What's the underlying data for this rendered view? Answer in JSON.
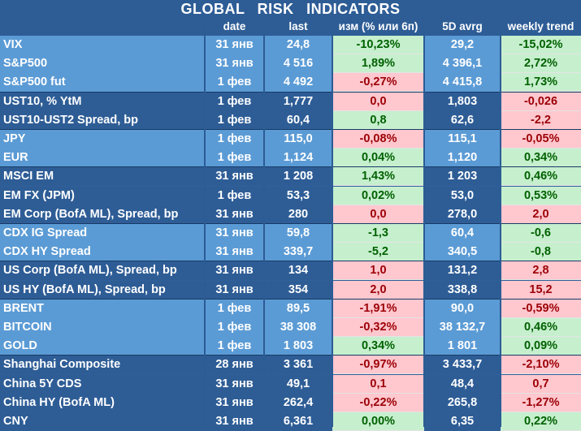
{
  "title": "GLOBAL RISK INDICATORS",
  "columns": [
    "",
    "date",
    "last",
    "изм (% или 6п)",
    "5D avrg",
    "weekly trend"
  ],
  "colors": {
    "block_light": "#5b9bd5",
    "block_dark": "#2e5d96",
    "positive_bg": "#c6efce",
    "positive_text": "#006100",
    "negative_bg": "#ffc7ce",
    "negative_text": "#9c0006"
  },
  "rows": [
    {
      "name": "VIX",
      "date": "31 янв",
      "last": "24,8",
      "chg": "-10,23%",
      "chg_sign": "pos",
      "avg": "29,2",
      "wk": "-15,02%",
      "wk_sign": "pos",
      "group": 1
    },
    {
      "name": "S&P500",
      "date": "31 янв",
      "last": "4 516",
      "chg": "1,89%",
      "chg_sign": "pos",
      "avg": "4 396,1",
      "wk": "2,72%",
      "wk_sign": "pos",
      "group": 1
    },
    {
      "name": "S&P500 fut",
      "date": "1 фев",
      "last": "4 492",
      "chg": "-0,27%",
      "chg_sign": "neg",
      "avg": "4 415,8",
      "wk": "1,73%",
      "wk_sign": "pos",
      "group": 1
    },
    {
      "name": "UST10, % YtM",
      "date": "1 фев",
      "last": "1,777",
      "chg": "0,0",
      "chg_sign": "neg",
      "avg": "1,803",
      "wk": "-0,026",
      "wk_sign": "neg",
      "group": 2
    },
    {
      "name": "UST10-UST2 Spread, bp",
      "date": "1 фев",
      "last": "60,4",
      "chg": "0,8",
      "chg_sign": "pos",
      "avg": "62,6",
      "wk": "-2,2",
      "wk_sign": "neg",
      "group": 2
    },
    {
      "name": "JPY",
      "date": "1 фев",
      "last": "115,0",
      "chg": "-0,08%",
      "chg_sign": "neg",
      "avg": "115,1",
      "wk": "-0,05%",
      "wk_sign": "neg",
      "group": 3
    },
    {
      "name": "EUR",
      "date": "1 фев",
      "last": "1,124",
      "chg": "0,04%",
      "chg_sign": "pos",
      "avg": "1,120",
      "wk": "0,34%",
      "wk_sign": "pos",
      "group": 3
    },
    {
      "name": "MSCI EM",
      "date": "31 янв",
      "last": "1 208",
      "chg": "1,43%",
      "chg_sign": "pos",
      "avg": "1 203",
      "wk": "0,46%",
      "wk_sign": "pos",
      "group": 4
    },
    {
      "name": "EM FX (JPM)",
      "date": "1 фев",
      "last": "53,3",
      "chg": "0,02%",
      "chg_sign": "pos",
      "avg": "53,0",
      "wk": "0,53%",
      "wk_sign": "pos",
      "group": 4
    },
    {
      "name": "EM Corp (BofA ML), Spread, bp",
      "date": "31 янв",
      "last": "280",
      "chg": "0,0",
      "chg_sign": "neg",
      "avg": "278,0",
      "wk": "2,0",
      "wk_sign": "neg",
      "group": 4
    },
    {
      "name": "CDX IG Spread",
      "date": "31 янв",
      "last": "59,8",
      "chg": "-1,3",
      "chg_sign": "pos",
      "avg": "60,4",
      "wk": "-0,6",
      "wk_sign": "pos",
      "group": 5
    },
    {
      "name": "CDX HY Spread",
      "date": "31 янв",
      "last": "339,7",
      "chg": "-5,2",
      "chg_sign": "pos",
      "avg": "340,5",
      "wk": "-0,8",
      "wk_sign": "pos",
      "group": 5
    },
    {
      "name": "US Corp (BofA ML), Spread, bp",
      "date": "31 янв",
      "last": "134",
      "chg": "1,0",
      "chg_sign": "neg",
      "avg": "131,2",
      "wk": "2,8",
      "wk_sign": "neg",
      "group": 6
    },
    {
      "name": "US HY (BofA ML), Spread, bp",
      "date": "31 янв",
      "last": "354",
      "chg": "2,0",
      "chg_sign": "neg",
      "avg": "338,8",
      "wk": "15,2",
      "wk_sign": "neg",
      "group": 6
    },
    {
      "name": "BRENT",
      "date": "1 фев",
      "last": "89,5",
      "chg": "-1,91%",
      "chg_sign": "neg",
      "avg": "90,0",
      "wk": "-0,59%",
      "wk_sign": "neg",
      "group": 7
    },
    {
      "name": "BITCOIN",
      "date": "1 фев",
      "last": "38 308",
      "chg": "-0,32%",
      "chg_sign": "neg",
      "avg": "38 132,7",
      "wk": "0,46%",
      "wk_sign": "pos",
      "group": 7
    },
    {
      "name": "GOLD",
      "date": "1 фев",
      "last": "1 803",
      "chg": "0,34%",
      "chg_sign": "pos",
      "avg": "1 801",
      "wk": "0,09%",
      "wk_sign": "pos",
      "group": 7
    },
    {
      "name": "Shanghai Composite",
      "date": "28 янв",
      "last": "3 361",
      "chg": "-0,97%",
      "chg_sign": "neg",
      "avg": "3 433,7",
      "wk": "-2,10%",
      "wk_sign": "neg",
      "group": 8
    },
    {
      "name": "China 5Y CDS",
      "date": "31 янв",
      "last": "49,1",
      "chg": "0,1",
      "chg_sign": "neg",
      "avg": "48,4",
      "wk": "0,7",
      "wk_sign": "neg",
      "group": 8
    },
    {
      "name": "China HY (BofA ML)",
      "date": "31 янв",
      "last": "262,4",
      "chg": "-0,22%",
      "chg_sign": "neg",
      "avg": "265,8",
      "wk": "-1,27%",
      "wk_sign": "neg",
      "group": 8
    },
    {
      "name": "CNY",
      "date": "31 янв",
      "last": "6,361",
      "chg": "0,00%",
      "chg_sign": "pos",
      "avg": "6,35",
      "wk": "0,22%",
      "wk_sign": "pos",
      "group": 8
    }
  ]
}
